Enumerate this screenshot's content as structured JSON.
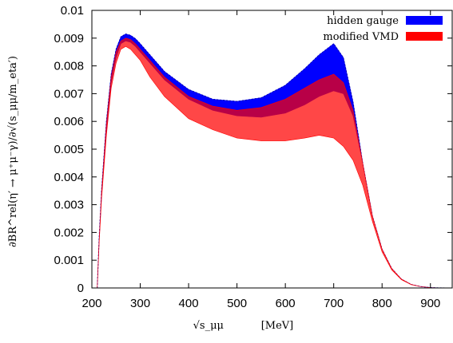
{
  "chart_data": {
    "type": "area",
    "xlabel": "√s_μμ",
    "xlabel_unit": "[MeV]",
    "ylabel": "∂BR^rel(η′ → μ⁺μ⁻γ)/∂√(s_μμ/m_eta′)",
    "xlim": [
      200,
      945
    ],
    "ylim": [
      0,
      0.01
    ],
    "x_ticks": [
      200,
      300,
      400,
      500,
      600,
      700,
      800,
      900
    ],
    "x_tick_labels": [
      "200",
      "300",
      "400",
      "500",
      "600",
      "700",
      "800",
      "900"
    ],
    "y_ticks": [
      0,
      0.001,
      0.002,
      0.003,
      0.004,
      0.005,
      0.006,
      0.007,
      0.008,
      0.009,
      0.01
    ],
    "y_tick_labels": [
      "0",
      "0.001",
      "0.002",
      "0.003",
      "0.004",
      "0.005",
      "0.006",
      "0.007",
      "0.008",
      "0.009",
      "0.01"
    ],
    "legend_position": "top-right",
    "grid": false,
    "series": [
      {
        "name": "hidden gauge",
        "color": "#0000ff",
        "x": [
          211,
          215,
          220,
          230,
          240,
          250,
          260,
          270,
          280,
          290,
          300,
          320,
          350,
          400,
          450,
          500,
          550,
          600,
          640,
          670,
          700,
          720,
          740,
          760,
          780,
          800,
          820,
          840,
          860,
          880,
          900,
          920,
          945
        ],
        "upper": [
          0,
          0.0018,
          0.0035,
          0.006,
          0.0077,
          0.0086,
          0.00905,
          0.00915,
          0.0091,
          0.00898,
          0.0088,
          0.0084,
          0.0078,
          0.00715,
          0.0068,
          0.00672,
          0.00685,
          0.0073,
          0.0079,
          0.0084,
          0.0088,
          0.0083,
          0.0067,
          0.0045,
          0.0026,
          0.0014,
          0.0007,
          0.00032,
          0.00013,
          5e-05,
          1.5e-05,
          4e-06,
          0
        ],
        "lower": [
          0,
          0.0017,
          0.0033,
          0.0057,
          0.0074,
          0.0083,
          0.0088,
          0.0089,
          0.00885,
          0.0087,
          0.0085,
          0.0081,
          0.0075,
          0.0068,
          0.0064,
          0.0062,
          0.00615,
          0.0063,
          0.0066,
          0.0069,
          0.0071,
          0.007,
          0.0062,
          0.0045,
          0.0026,
          0.0014,
          0.0007,
          0.00032,
          0.00013,
          5e-05,
          1.5e-05,
          4e-06,
          0
        ]
      },
      {
        "name": "modified VMD",
        "color": "#ff0000",
        "x": [
          211,
          215,
          220,
          230,
          240,
          250,
          260,
          270,
          280,
          290,
          300,
          320,
          350,
          400,
          450,
          500,
          550,
          600,
          640,
          670,
          700,
          720,
          740,
          760,
          780,
          800,
          820,
          840,
          860,
          880,
          900,
          920,
          945
        ],
        "upper": [
          0,
          0.0017,
          0.0034,
          0.0059,
          0.0076,
          0.0085,
          0.0089,
          0.009,
          0.00895,
          0.0088,
          0.0086,
          0.0082,
          0.0076,
          0.0069,
          0.00655,
          0.0064,
          0.0065,
          0.0068,
          0.0072,
          0.0075,
          0.0077,
          0.0074,
          0.0064,
          0.0045,
          0.0026,
          0.0014,
          0.0007,
          0.00032,
          0.00013,
          5e-05,
          1.5e-05,
          4e-06,
          0
        ],
        "lower": [
          0,
          0.0016,
          0.0032,
          0.0055,
          0.0072,
          0.0081,
          0.0086,
          0.0087,
          0.0086,
          0.0084,
          0.0082,
          0.0076,
          0.0069,
          0.0061,
          0.0057,
          0.0054,
          0.0053,
          0.0053,
          0.0054,
          0.0055,
          0.0054,
          0.0051,
          0.0046,
          0.0037,
          0.0024,
          0.0013,
          0.00065,
          0.0003,
          0.00012,
          5e-05,
          1.5e-05,
          4e-06,
          0
        ]
      }
    ]
  }
}
